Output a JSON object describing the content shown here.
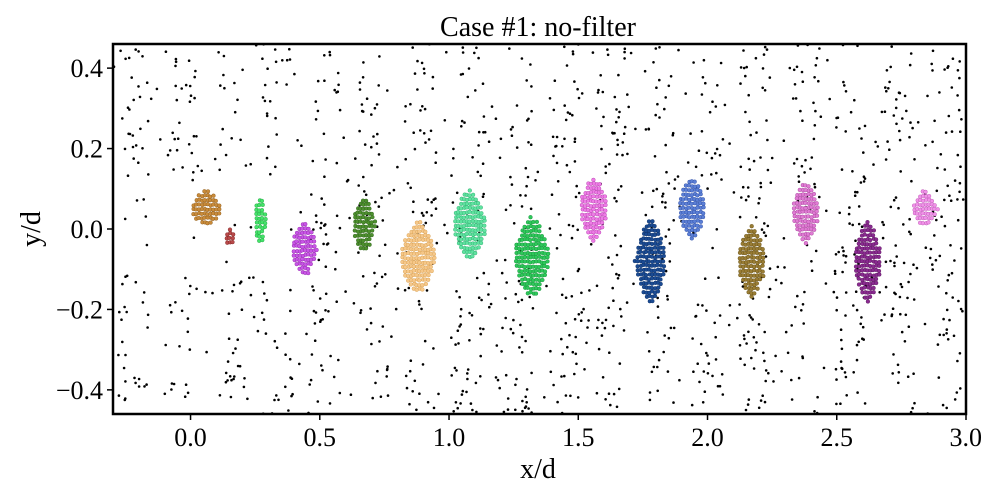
{
  "chart_data": {
    "type": "scatter",
    "title": "Case #1: no-filter",
    "xlabel": "x/d",
    "ylabel": "y/d",
    "xlim": [
      -0.3,
      3.0
    ],
    "ylim": [
      -0.46,
      0.46
    ],
    "xticks": [
      0.0,
      0.5,
      1.0,
      1.5,
      2.0,
      2.5,
      3.0
    ],
    "xtick_labels": [
      "0.0",
      "0.5",
      "1.0",
      "1.5",
      "2.0",
      "2.5",
      "3.0"
    ],
    "yticks": [
      0.4,
      0.2,
      0.0,
      -0.2,
      -0.4
    ],
    "ytick_labels": [
      "0.4",
      "0.2",
      "0.0",
      "−0.2",
      "−0.4"
    ],
    "grid": false,
    "background_points": {
      "color": "#000000",
      "description_count": 1400,
      "x_range": [
        -0.3,
        3.0
      ],
      "y_range": [
        -0.46,
        0.46
      ]
    },
    "clusters": [
      {
        "center": [
          0.06,
          0.05
        ],
        "radius": [
          0.06,
          0.045
        ],
        "color": "#c98b3a",
        "edge": "#8a5a1d"
      },
      {
        "center": [
          0.27,
          0.02
        ],
        "radius": [
          0.025,
          0.06
        ],
        "color": "#44e36a",
        "edge": "#1f9e3e"
      },
      {
        "center": [
          0.15,
          -0.02
        ],
        "radius": [
          0.02,
          0.025
        ],
        "color": "#b94a4a",
        "edge": "#7a2020"
      },
      {
        "center": [
          0.44,
          -0.05
        ],
        "radius": [
          0.05,
          0.07
        ],
        "color": "#c855e6",
        "edge": "#8b25a3"
      },
      {
        "center": [
          0.67,
          0.01
        ],
        "radius": [
          0.045,
          0.07
        ],
        "color": "#4d8f2e",
        "edge": "#2b5e18"
      },
      {
        "center": [
          0.88,
          -0.07
        ],
        "radius": [
          0.07,
          0.09
        ],
        "color": "#f6c88a",
        "edge": "#d49a4a"
      },
      {
        "center": [
          1.08,
          0.01
        ],
        "radius": [
          0.065,
          0.09
        ],
        "color": "#5fe3a0",
        "edge": "#2aa86b"
      },
      {
        "center": [
          1.32,
          -0.07
        ],
        "radius": [
          0.07,
          0.1
        ],
        "color": "#2ec85a",
        "edge": "#158c38"
      },
      {
        "center": [
          1.56,
          0.05
        ],
        "radius": [
          0.055,
          0.08
        ],
        "color": "#ee7ce6",
        "edge": "#b03aa8"
      },
      {
        "center": [
          1.78,
          -0.08
        ],
        "radius": [
          0.06,
          0.11
        ],
        "color": "#1a4b94",
        "edge": "#0c2c5e"
      },
      {
        "center": [
          1.94,
          0.05
        ],
        "radius": [
          0.055,
          0.075
        ],
        "color": "#5b7fd6",
        "edge": "#2c4aa0"
      },
      {
        "center": [
          2.17,
          -0.08
        ],
        "radius": [
          0.055,
          0.09
        ],
        "color": "#9a7d34",
        "edge": "#5f4b14"
      },
      {
        "center": [
          2.38,
          0.04
        ],
        "radius": [
          0.055,
          0.075
        ],
        "color": "#e07bd4",
        "edge": "#a03c93"
      },
      {
        "center": [
          2.62,
          -0.08
        ],
        "radius": [
          0.055,
          0.1
        ],
        "color": "#8a2a90",
        "edge": "#551458"
      },
      {
        "center": [
          2.84,
          0.05
        ],
        "radius": [
          0.05,
          0.045
        ],
        "color": "#f092e8",
        "edge": "#b84fae"
      }
    ]
  }
}
